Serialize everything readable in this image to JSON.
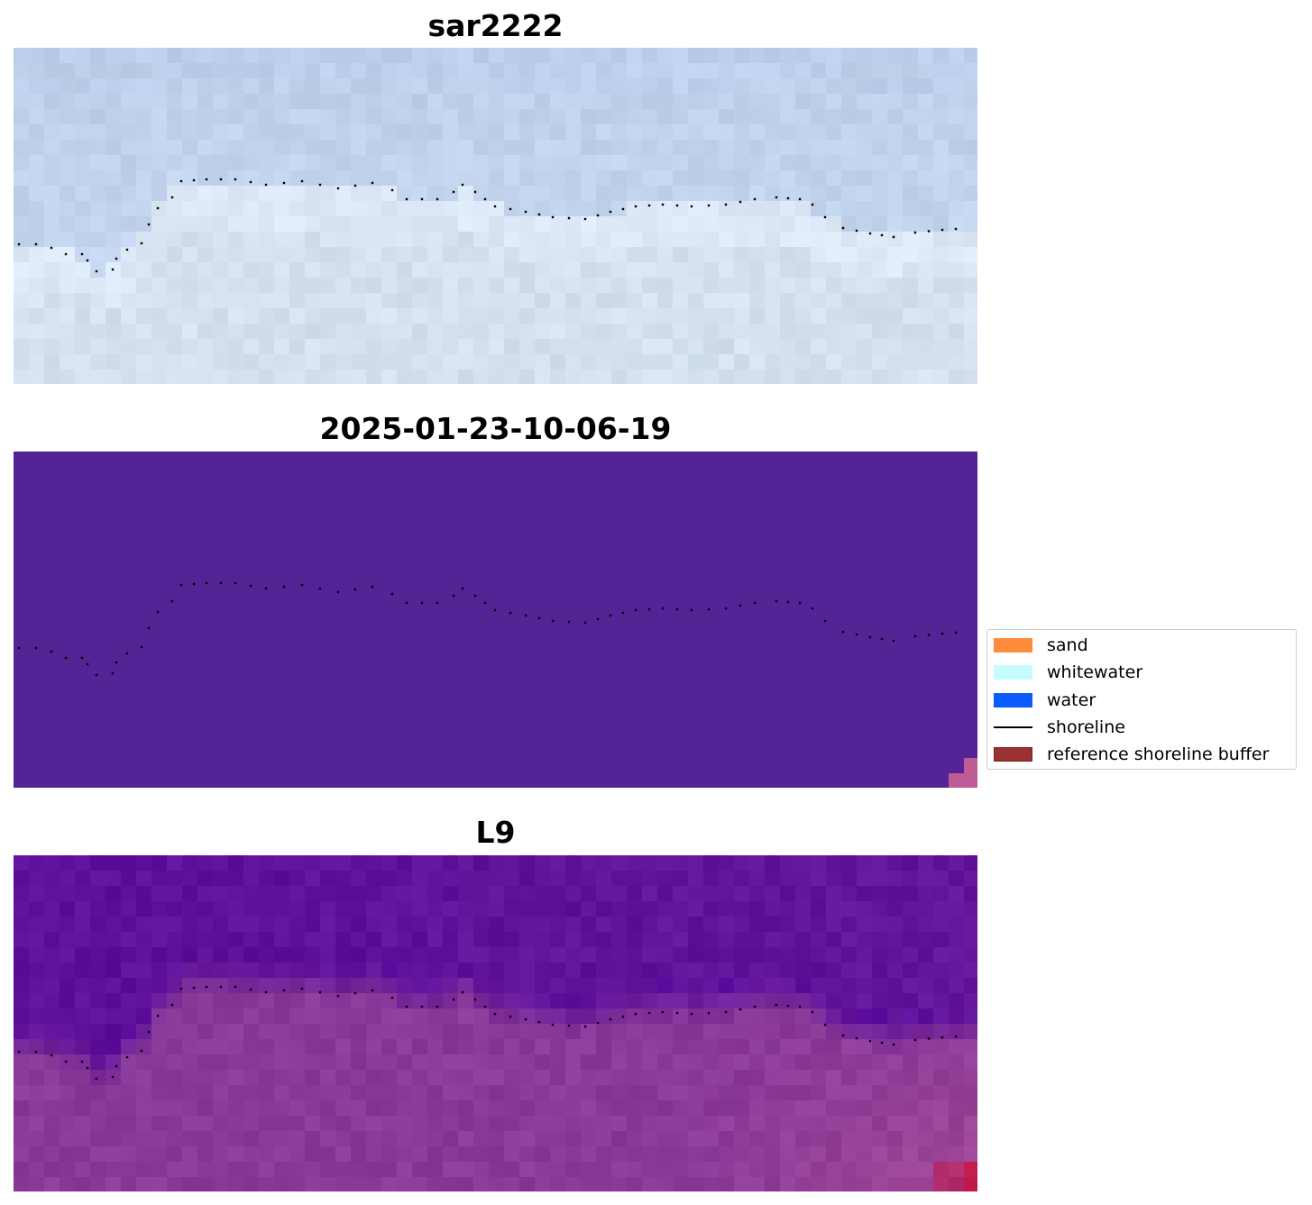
{
  "panels": [
    {
      "id": "rgb",
      "title": "sar2222",
      "colors": {
        "sky_top": "#bccfea",
        "sky_mid": "#c3d5ee",
        "surf": "#dde8f6",
        "sand": "#cedbeb"
      }
    },
    {
      "id": "classified",
      "title": "2025-01-23-10-06-19",
      "colors": {
        "background": "#532496",
        "corner": "#bd5c97"
      }
    },
    {
      "id": "index",
      "title": "L9",
      "colors": {
        "water": "#5a0c9c",
        "land": "#8a3a98",
        "hot": "#c0103f"
      }
    }
  ],
  "shoreline": {
    "color": "#000000",
    "style": "dotted"
  },
  "legend": {
    "items": [
      {
        "label": "sand",
        "kind": "patch",
        "color": "#ff8c3c",
        "edge": "#ff8c3c"
      },
      {
        "label": "whitewater",
        "kind": "patch",
        "color": "#c7fcfc",
        "edge": "#c7fcfc"
      },
      {
        "label": "water",
        "kind": "patch",
        "color": "#0a5cff",
        "edge": "#0a5cff"
      },
      {
        "label": "shoreline",
        "kind": "line",
        "color": "#000000"
      },
      {
        "label": "reference shoreline buffer",
        "kind": "patch",
        "color": "#9c3131",
        "edge": "#7a1f1f"
      }
    ]
  }
}
